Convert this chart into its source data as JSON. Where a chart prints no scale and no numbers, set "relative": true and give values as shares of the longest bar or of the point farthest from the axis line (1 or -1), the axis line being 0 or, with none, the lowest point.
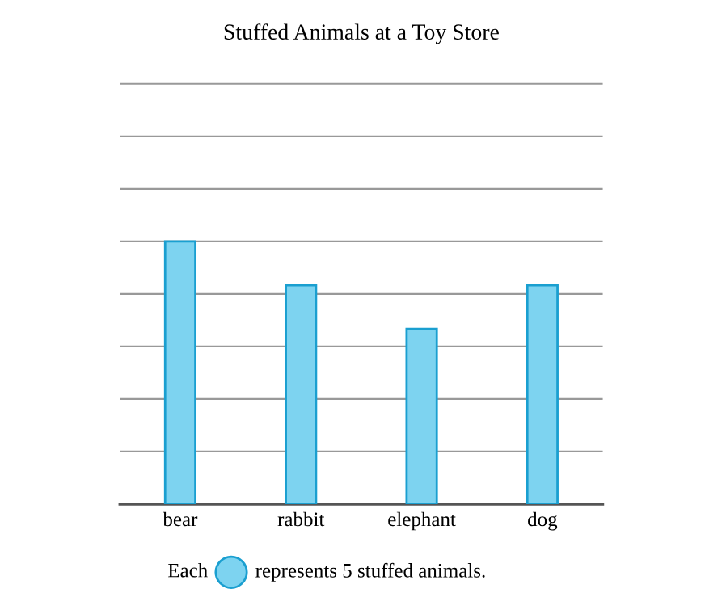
{
  "chart_data": {
    "type": "bar",
    "title": "Stuffed Animals at a Toy Store",
    "categories": [
      "bear",
      "rabbit",
      "elephant",
      "dog"
    ],
    "values": [
      1,
      0.8333,
      0.6667,
      0.8333
    ],
    "color": "#7dd3f0",
    "relative": true,
    "grid": "y",
    "tick_labels": "x",
    "annotations": [
      "Each",
      "represents 5 stuffed animals."
    ]
  }
}
